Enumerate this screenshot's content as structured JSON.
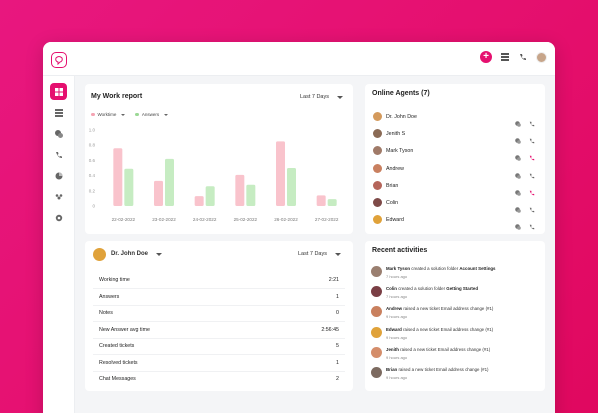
{
  "header": {},
  "sidebar": {
    "items": [
      "dashboard",
      "list",
      "tickets",
      "calls",
      "reports",
      "contacts",
      "settings"
    ]
  },
  "work_report": {
    "title": "My Work report",
    "range": "Last 7 Days",
    "legend_worktime": "Worktime",
    "legend_answers": "Answers",
    "colors": {
      "worktime": "#f9c3cc",
      "answers": "#c6ecc2"
    }
  },
  "chart_data": {
    "type": "bar",
    "categories": [
      "22-02-2022",
      "23-02-2022",
      "24-02-2022",
      "25-02-2022",
      "26-02-2022",
      "27-02-2022"
    ],
    "series": [
      {
        "name": "Worktime",
        "values": [
          0.76,
          0.33,
          0.13,
          0.41,
          0.85,
          0.14
        ]
      },
      {
        "name": "Answers",
        "values": [
          0.49,
          0.62,
          0.26,
          0.28,
          0.5,
          0.09
        ]
      }
    ],
    "yticks": [
      "1.0",
      "0.8",
      "0.6",
      "0.4",
      "0.2",
      "0"
    ],
    "ylim": [
      0,
      1.0
    ],
    "grid": false
  },
  "online_agents": {
    "title": "Online Agents (7)",
    "agents": [
      {
        "name": "Dr. John Doe",
        "avatar_color": "#d49a5c",
        "phone_color": "#666"
      },
      {
        "name": "Jenith S",
        "avatar_color": "#8a6a55",
        "phone_color": "#666"
      },
      {
        "name": "Mark Tyson",
        "avatar_color": "#a07a68",
        "phone_color": "#e5106f"
      },
      {
        "name": "Andrew",
        "avatar_color": "#c98060",
        "phone_color": "#666"
      },
      {
        "name": "Brian",
        "avatar_color": "#b5655a",
        "phone_color": "#e5106f"
      },
      {
        "name": "Colin",
        "avatar_color": "#7e4a48",
        "phone_color": "#666"
      },
      {
        "name": "Edward",
        "avatar_color": "#e0a23a",
        "phone_color": "#666"
      }
    ]
  },
  "agent_stats": {
    "agent_name": "Dr. John Doe",
    "range": "Last 7 Days",
    "rows": [
      {
        "label": "Working time",
        "value": "2:21"
      },
      {
        "label": "Answers",
        "value": "1"
      },
      {
        "label": "Notes",
        "value": "0"
      },
      {
        "label": "New Answer avg time",
        "value": "2:56:45"
      },
      {
        "label": "Created tickets",
        "value": "5"
      },
      {
        "label": "Resolved tickets",
        "value": "1"
      },
      {
        "label": "Chat Messages",
        "value": "2"
      }
    ]
  },
  "recent_activities": {
    "title": "Recent activities",
    "items": [
      {
        "who": "Mark Tyson",
        "action": " created a solution folder ",
        "target": "Account Settings",
        "time": "7 hours ago",
        "avatar_color": "#9a7f70"
      },
      {
        "who": "Colin",
        "action": " created a solution folder ",
        "target": "Getting Started",
        "time": "7 hours ago",
        "avatar_color": "#7a3f45"
      },
      {
        "who": "Andrew",
        "action": " raised a new ticket Email address change (#1)",
        "target": "",
        "time": "9 hours ago",
        "avatar_color": "#c9805e"
      },
      {
        "who": "Edward",
        "action": " raised a new ticket Email address change (#1)",
        "target": "",
        "time": "9 hours ago",
        "avatar_color": "#e0a23a"
      },
      {
        "who": "Jenith",
        "action": " raised a new ticket Email address change (#1)",
        "target": "",
        "time": "9 hours ago",
        "avatar_color": "#d48d6a"
      },
      {
        "who": "Brian",
        "action": " raised a new ticket Email address change (#1)",
        "target": "",
        "time": "9 hours ago",
        "avatar_color": "#7c6a60"
      }
    ]
  }
}
